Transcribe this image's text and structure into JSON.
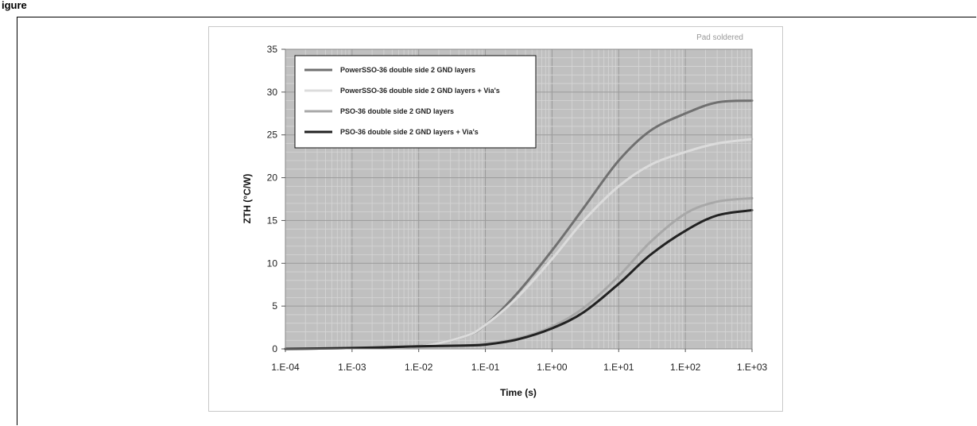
{
  "figure": {
    "caption": "igure"
  },
  "chart_data": {
    "type": "line",
    "title": "",
    "annotation": "Pad soldered",
    "xlabel": "Time (s)",
    "ylabel": "ZTH (°C/W)",
    "x_scale": "log",
    "xlim": [
      0.0001,
      1000
    ],
    "ylim": [
      0,
      35
    ],
    "x_ticks": [
      0.0001,
      0.001,
      0.01,
      0.1,
      1,
      10,
      100,
      1000
    ],
    "x_tick_labels": [
      "1.E-04",
      "1.E-03",
      "1.E-02",
      "1.E-01",
      "1.E+00",
      "1.E+01",
      "1.E+02",
      "1.E+03"
    ],
    "y_ticks": [
      0,
      5,
      10,
      15,
      20,
      25,
      30,
      35
    ],
    "y_tick_labels": [
      "0",
      "5",
      "10",
      "15",
      "20",
      "25",
      "30",
      "35"
    ],
    "grid": true,
    "legend_position": "top-left",
    "x": [
      0.0001,
      0.001,
      0.01,
      0.05,
      0.1,
      0.3,
      1,
      3,
      10,
      30,
      100,
      300,
      1000
    ],
    "series": [
      {
        "name": "PowerSSO-36 double side 2 GND layers",
        "color": "#707070",
        "values": [
          0,
          0.1,
          0.3,
          1.5,
          2.8,
          6.5,
          11.5,
          16.5,
          22,
          25.5,
          27.5,
          28.8,
          29
        ]
      },
      {
        "name": "PowerSSO-36 double side 2 GND layers + Via's",
        "color": "#dcdcdc",
        "values": [
          0,
          0.1,
          0.3,
          1.5,
          2.8,
          6,
          10.5,
          15,
          19,
          21.5,
          23,
          24,
          24.5
        ]
      },
      {
        "name": "PSO-36 double side 2 GND layers",
        "color": "#a8a8a8",
        "values": [
          0,
          0.1,
          0.3,
          0.4,
          0.6,
          1.2,
          2.6,
          4.8,
          8.5,
          12.5,
          15.8,
          17.2,
          17.6
        ]
      },
      {
        "name": "PSO-36 double side 2 GND layers + Via's",
        "color": "#222222",
        "values": [
          0,
          0.1,
          0.3,
          0.4,
          0.5,
          1.1,
          2.4,
          4.3,
          7.6,
          11,
          13.8,
          15.6,
          16.2
        ]
      }
    ]
  }
}
